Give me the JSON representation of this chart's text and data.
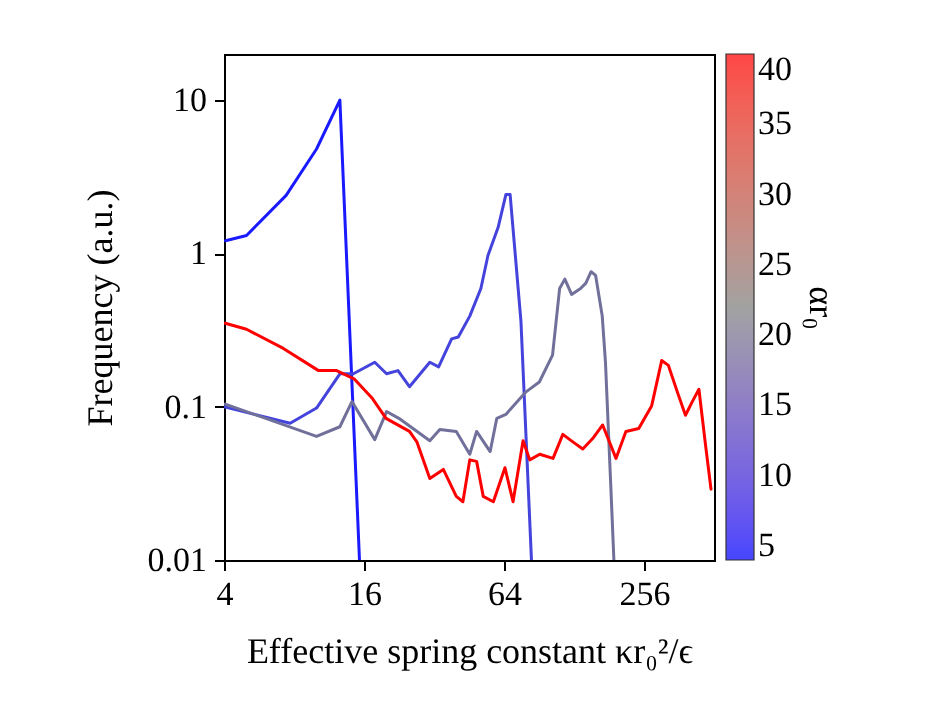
{
  "chart_data": {
    "type": "line",
    "xlabel": "Effective spring constant κr₀²/ϵ",
    "ylabel": "Frequency (a.u.)",
    "clabel": "αr₀",
    "clim": [
      4,
      40
    ],
    "cticks": [
      5,
      10,
      15,
      20,
      25,
      30,
      35,
      40
    ],
    "xlim": [
      4,
      512
    ],
    "xticks": [
      4,
      16,
      64,
      256
    ],
    "ylim": [
      0.01,
      20
    ],
    "yticks": [
      0.01,
      0.1,
      1,
      10
    ],
    "log": "xy",
    "series": [
      {
        "color": "#1a1aff",
        "x": [
          4.06,
          5.0,
          7.4,
          10,
          12.6,
          15.3
        ],
        "values": [
          1.21,
          1.31,
          2.39,
          4.8,
          10,
          0.01
        ]
      },
      {
        "color": "#4444dd",
        "x": [
          4,
          7.7,
          10,
          12.6,
          14.4,
          17.8,
          20,
          22.4,
          25.1,
          30.7,
          33.5,
          38.1,
          40.7,
          45.6,
          50.9,
          54.6,
          60.4,
          65.2,
          68,
          75.7,
          84
        ],
        "values": [
          0.1,
          0.078,
          0.098,
          0.164,
          0.164,
          0.195,
          0.164,
          0.172,
          0.135,
          0.195,
          0.182,
          0.277,
          0.285,
          0.39,
          0.59,
          0.97,
          1.48,
          2.42,
          2.42,
          0.36,
          0.01
        ]
      },
      {
        "color": "#70709a",
        "x": [
          4.05,
          10,
          12.6,
          14.2,
          17.8,
          20,
          22.6,
          30.7,
          33.9,
          39.9,
          45.6,
          48.8,
          55.8,
          59.6,
          65.2,
          79.6,
          90.8,
          103.5,
          111,
          116.9,
          125,
          136.6,
          143.9,
          151.6,
          158.5,
          169.3,
          174.8,
          184,
          190
        ],
        "values": [
          0.104,
          0.064,
          0.074,
          0.108,
          0.061,
          0.093,
          0.084,
          0.06,
          0.071,
          0.069,
          0.049,
          0.069,
          0.051,
          0.084,
          0.089,
          0.125,
          0.145,
          0.217,
          0.59,
          0.68,
          0.54,
          0.59,
          0.64,
          0.76,
          0.72,
          0.39,
          0.195,
          0.032,
          0.01
        ]
      },
      {
        "color": "#ff0000",
        "x": [
          4.05,
          5.0,
          7.2,
          10.2,
          12.2,
          14.5,
          17.4,
          19.9,
          25.1,
          27,
          30.7,
          35.1,
          39.9,
          42.6,
          45.6,
          48.8,
          52.1,
          57.6,
          64.6,
          70,
          77.3,
          82.6,
          91.2,
          104,
          114.6,
          126.5,
          139.6,
          154,
          170,
          194,
          214,
          243,
          276,
          305,
          326,
          356,
          386,
          413,
          441,
          471,
          497
        ],
        "values": [
          0.35,
          0.32,
          0.24,
          0.172,
          0.172,
          0.152,
          0.113,
          0.084,
          0.069,
          0.059,
          0.034,
          0.039,
          0.026,
          0.024,
          0.045,
          0.044,
          0.026,
          0.024,
          0.04,
          0.024,
          0.06,
          0.045,
          0.049,
          0.046,
          0.066,
          0.059,
          0.053,
          0.062,
          0.076,
          0.046,
          0.069,
          0.072,
          0.101,
          0.2,
          0.186,
          0.125,
          0.088,
          0.108,
          0.13,
          0.056,
          0.029
        ]
      }
    ]
  }
}
